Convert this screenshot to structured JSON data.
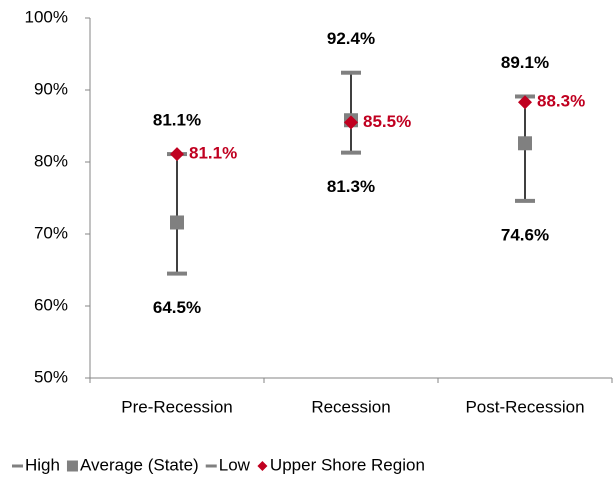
{
  "chart_data": {
    "type": "high-low",
    "categories": [
      "Pre-Recession",
      "Recession",
      "Post-Recession"
    ],
    "series": [
      {
        "name": "High",
        "color": "#808080",
        "marker": "dash",
        "values": [
          81.1,
          92.4,
          89.1
        ],
        "value_labels": [
          "81.1%",
          "92.4%",
          "89.1%"
        ],
        "label_color": "#000000",
        "label_position": "above"
      },
      {
        "name": "Average (State)",
        "color": "#808080",
        "marker": "square",
        "values": [
          71.6,
          85.8,
          82.6
        ]
      },
      {
        "name": "Low",
        "color": "#808080",
        "marker": "dash",
        "values": [
          64.5,
          81.3,
          74.6
        ],
        "value_labels": [
          "64.5%",
          "81.3%",
          "74.6%"
        ],
        "label_color": "#000000",
        "label_position": "below"
      },
      {
        "name": "Upper Shore Region",
        "color": "#c00020",
        "marker": "diamond",
        "values": [
          81.1,
          85.5,
          88.3
        ],
        "value_labels": [
          "81.1%",
          "85.5%",
          "88.3%"
        ],
        "label_color": "#c00020",
        "label_position": "right"
      }
    ],
    "ylim": [
      50,
      100
    ],
    "yticks": [
      {
        "value": 50,
        "label": "50%"
      },
      {
        "value": 60,
        "label": "60%"
      },
      {
        "value": 70,
        "label": "70%"
      },
      {
        "value": 80,
        "label": "80%"
      },
      {
        "value": 90,
        "label": "90%"
      },
      {
        "value": 100,
        "label": "100%"
      }
    ],
    "grid": false,
    "legend_position": "bottom"
  }
}
